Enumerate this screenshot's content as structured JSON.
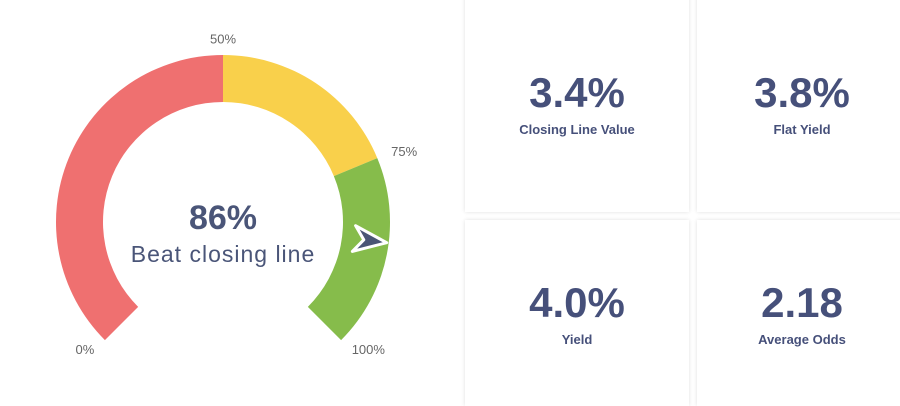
{
  "chart_data": {
    "type": "gauge",
    "values": [
      86
    ],
    "value_labels": [
      "86%"
    ],
    "label": "Beat closing line",
    "ylim": [
      0,
      100
    ],
    "yticks": [
      {
        "value": 0,
        "label": "0%"
      },
      {
        "value": 50,
        "label": "50%"
      },
      {
        "value": 75,
        "label": "75%"
      },
      {
        "value": 100,
        "label": "100%"
      }
    ],
    "ranges": [
      {
        "from": 0,
        "to": 50,
        "color": "#ef7070"
      },
      {
        "from": 50,
        "to": 75,
        "color": "#f9d04b"
      },
      {
        "from": 75,
        "to": 100,
        "color": "#86bc4b"
      }
    ],
    "marker_color": "#4a5575"
  },
  "stats": [
    {
      "value": "3.4%",
      "label": "Closing Line Value"
    },
    {
      "value": "3.8%",
      "label": "Flat Yield"
    },
    {
      "value": "4.0%",
      "label": "Yield"
    },
    {
      "value": "2.18",
      "label": "Average Odds"
    }
  ]
}
